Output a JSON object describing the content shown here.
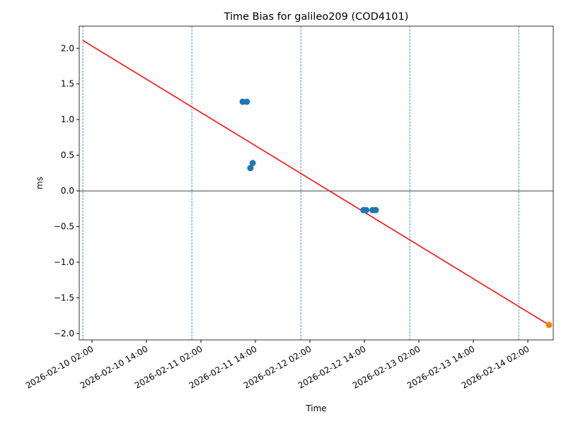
{
  "chart_data": {
    "type": "time-series",
    "title": "Time Bias for galileo209 (COD4101)",
    "x_label": "Time",
    "y_label": "ms",
    "xlim": [
      "2026-02-09 23:12",
      "2026-02-14 07:36"
    ],
    "ylim": [
      -2.09,
      2.31
    ],
    "xticks": [
      "2026-02-10 02:00",
      "2026-02-10 14:00",
      "2026-02-11 02:00",
      "2026-02-11 14:00",
      "2026-02-12 02:00",
      "2026-02-12 14:00",
      "2026-02-13 02:00",
      "2026-02-13 14:00",
      "2026-02-14 02:00"
    ],
    "yticks": [
      {
        "value": -2.0,
        "label": "−2.0"
      },
      {
        "value": -1.5,
        "label": "−1.5"
      },
      {
        "value": -1.0,
        "label": "−1.0"
      },
      {
        "value": -0.5,
        "label": "−0.5"
      },
      {
        "value": 0.0,
        "label": "0.0"
      },
      {
        "value": 0.5,
        "label": "0.5"
      },
      {
        "value": 1.0,
        "label": "1.0"
      },
      {
        "value": 1.5,
        "label": "1.5"
      },
      {
        "value": 2.0,
        "label": "2.0"
      }
    ],
    "hline": 0,
    "vlines": [
      "2026-02-10 00:00",
      "2026-02-11 00:00",
      "2026-02-12 00:00",
      "2026-02-13 00:00",
      "2026-02-14 00:00"
    ],
    "vline_color": "#1f77b4",
    "series": [
      {
        "mode": "line",
        "color": "#ff0000",
        "x": [
          "2026-02-10 00:00",
          "2026-02-14 06:40"
        ],
        "values": [
          2.11,
          -1.88
        ]
      },
      {
        "mode": "scatter",
        "color": "#1f77b4",
        "x": [
          "2026-02-11 11:12",
          "2026-02-11 12:06",
          "2026-02-11 12:54",
          "2026-02-11 13:24",
          "2026-02-12 13:48",
          "2026-02-12 14:24",
          "2026-02-12 15:48",
          "2026-02-12 16:30"
        ],
        "values": [
          1.25,
          1.25,
          0.32,
          0.39,
          -0.27,
          -0.27,
          -0.27,
          -0.27
        ]
      },
      {
        "mode": "scatter",
        "color": "#ff7f0e",
        "x": [
          "2026-02-14 06:40"
        ],
        "values": [
          -1.88
        ]
      }
    ]
  }
}
